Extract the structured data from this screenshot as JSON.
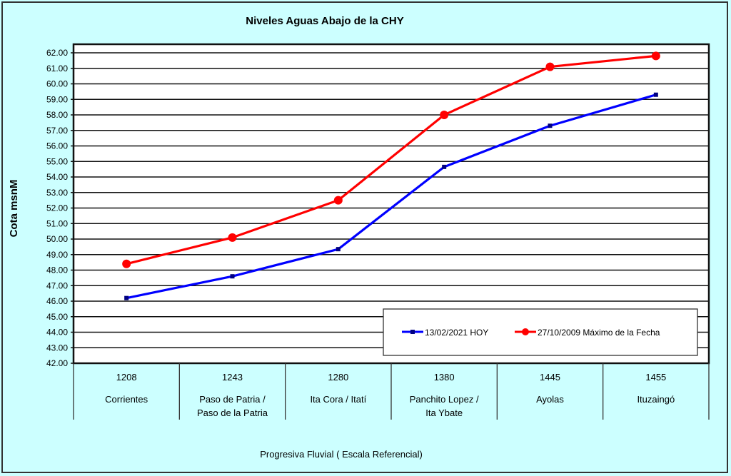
{
  "chart_data": {
    "type": "line",
    "title": "Niveles Aguas Abajo de la CHY",
    "ylabel": "Cota msnM",
    "xlabel": "Progresiva Fluvial ( Escala Referencial)",
    "ylim": [
      42,
      62
    ],
    "ytick_step": 1,
    "yticks": [
      "42.00",
      "43.00",
      "44.00",
      "45.00",
      "46.00",
      "47.00",
      "48.00",
      "49.00",
      "50.00",
      "51.00",
      "52.00",
      "53.00",
      "54.00",
      "55.00",
      "56.00",
      "57.00",
      "58.00",
      "59.00",
      "60.00",
      "61.00",
      "62.00"
    ],
    "categories": [
      {
        "km": "1208",
        "name": [
          "Corrientes"
        ]
      },
      {
        "km": "1243",
        "name": [
          "Paso de Patria /",
          "Paso de la Patria"
        ]
      },
      {
        "km": "1280",
        "name": [
          "Ita Cora / Itatí"
        ]
      },
      {
        "km": "1380",
        "name": [
          "Panchito Lopez /",
          "Ita Ybate"
        ]
      },
      {
        "km": "1445",
        "name": [
          "Ayolas"
        ]
      },
      {
        "km": "1455",
        "name": [
          "Ituzaingó"
        ]
      }
    ],
    "series": [
      {
        "name": "13/02/2021 HOY",
        "color": "#0000ff",
        "marker": "square",
        "values": [
          46.2,
          47.6,
          49.35,
          54.65,
          57.3,
          59.3
        ]
      },
      {
        "name": "27/10/2009 Máximo de la Fecha",
        "color": "#ff0000",
        "marker": "circle",
        "values": [
          48.4,
          50.1,
          52.5,
          58.0,
          61.1,
          61.8
        ]
      }
    ],
    "grid": true,
    "legend": "bottom-right"
  }
}
